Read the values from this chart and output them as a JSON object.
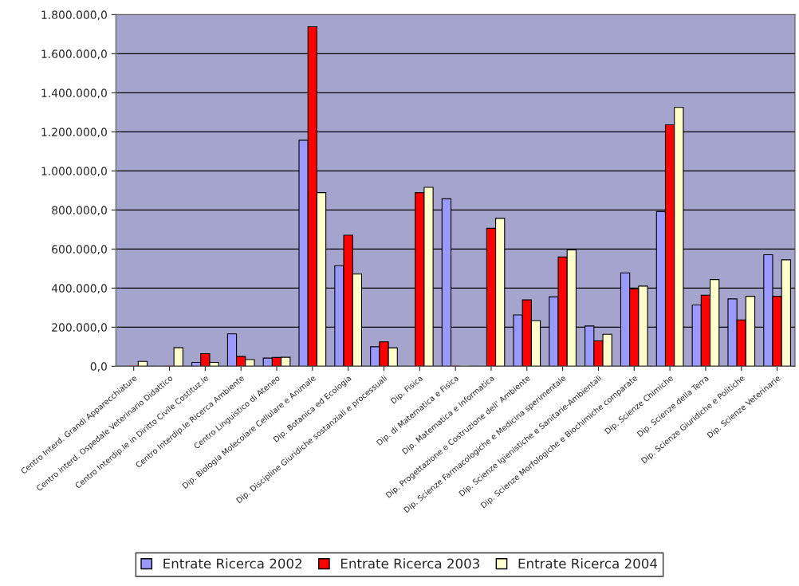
{
  "chart_data": {
    "type": "bar",
    "categories": [
      "Centro Interd. Grandi Apparecchiature",
      "Centro interd. Ospedale Veterinario Didattico",
      "Centro Interdip.le in Diritto Civile Costituz.le",
      "Centro Interdip.le Ricerca Ambiente",
      "Centro Linguistico di Ateneo",
      "Dip. Biologia Molecolare Cellulare e Animale",
      "Dip. Botanica ed Ecologia",
      "Dip. Discipline Giuridiche sostanziali e processuali",
      "Dip. Fisica",
      "Dip. di Matematica e Fisica",
      "Dip. Matematica e Informatica",
      "Dip. Progettazione e Costruzione dell' Ambiente",
      "Dip. Scienze Farmacologiche e Medicina sperimentale",
      "Dip. Scienze Igienistiche e Sanitarie-Ambientali",
      "Dip. Scienze Morfologiche e Biochimiche comparate",
      "Dip. Scienze Chimiche",
      "Dip. Scienze della Terra",
      "Dip. Scienze Giuridiche e Politiche",
      "Dip. Scienze Veterinarie"
    ],
    "series": [
      {
        "name": "Entrate Ricerca 2002",
        "color": "#9999ff",
        "values": [
          0,
          0,
          20000,
          166000,
          42000,
          1157000,
          515000,
          100000,
          0,
          857000,
          0,
          263000,
          355000,
          206000,
          478000,
          792000,
          314000,
          345000,
          571000
        ]
      },
      {
        "name": "Entrate Ricerca 2003",
        "color": "#ff0000",
        "values": [
          0,
          0,
          65000,
          50000,
          45000,
          1738000,
          671000,
          125000,
          889000,
          0,
          706000,
          340000,
          559000,
          130000,
          396000,
          1236000,
          364000,
          237000,
          358000
        ]
      },
      {
        "name": "Entrate Ricerca 2004",
        "color": "#ffffcc",
        "values": [
          25000,
          95000,
          20000,
          34000,
          46000,
          889000,
          472000,
          94000,
          916000,
          0,
          757000,
          233000,
          596000,
          164000,
          410000,
          1325000,
          444000,
          358000,
          545000
        ]
      }
    ],
    "ylim": [
      0,
      1800000
    ],
    "yticks": [
      {
        "value": 0,
        "label": "0,0"
      },
      {
        "value": 200000,
        "label": "200.000,0"
      },
      {
        "value": 400000,
        "label": "400.000,0"
      },
      {
        "value": 600000,
        "label": "600.000,0"
      },
      {
        "value": 800000,
        "label": "800.000,0"
      },
      {
        "value": 1000000,
        "label": "1.000.000,0"
      },
      {
        "value": 1200000,
        "label": "1.200.000,0"
      },
      {
        "value": 1400000,
        "label": "1.400.000,0"
      },
      {
        "value": 1600000,
        "label": "1.600.000,0"
      },
      {
        "value": 1800000,
        "label": "1.800.000,0"
      }
    ],
    "grid": "y",
    "legend": "bottom"
  }
}
